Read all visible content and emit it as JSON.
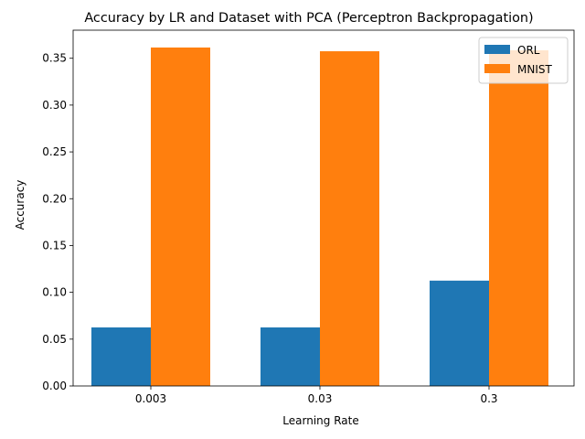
{
  "chart_data": {
    "type": "bar",
    "title": "Accuracy by LR and Dataset with PCA (Perceptron Backpropagation)",
    "xlabel": "Learning Rate",
    "ylabel": "Accuracy",
    "categories": [
      "0.003",
      "0.03",
      "0.3"
    ],
    "series": [
      {
        "name": "ORL",
        "color": "#1f77b4",
        "values": [
          0.0625,
          0.0625,
          0.1125
        ]
      },
      {
        "name": "MNIST",
        "color": "#ff7f0e",
        "values": [
          0.3615,
          0.3575,
          0.3585
        ]
      }
    ],
    "ylim": [
      0,
      0.38
    ],
    "yticks": [
      "0.00",
      "0.05",
      "0.10",
      "0.15",
      "0.20",
      "0.25",
      "0.30",
      "0.35"
    ],
    "ytick_values": [
      0,
      0.05,
      0.1,
      0.15,
      0.2,
      0.25,
      0.3,
      0.35
    ],
    "grid": false,
    "legend_position": "top-right"
  }
}
